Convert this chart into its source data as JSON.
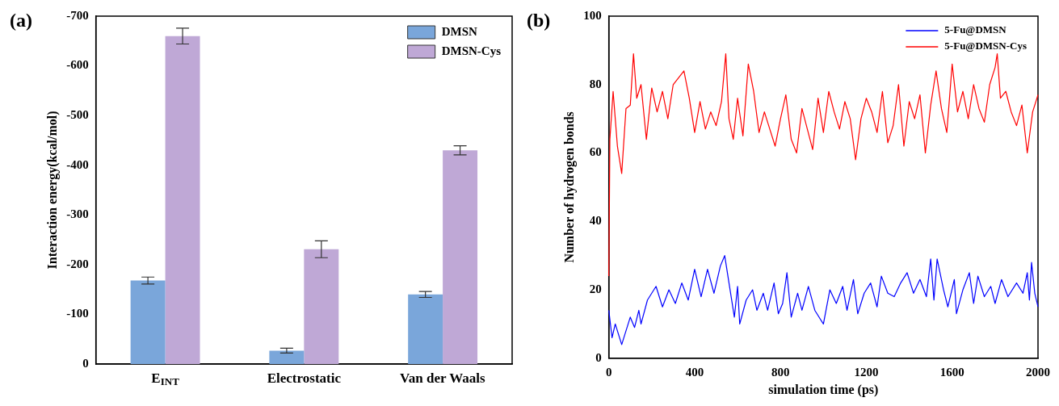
{
  "chart_data": [
    {
      "type": "bar",
      "annotations": [
        "(a)"
      ],
      "ylabel": "Interaction energy(kcal/mol)",
      "categories": [
        "E$_{INT}$",
        "Electrostatic",
        "Van der Waals"
      ],
      "ylim": [
        0,
        -700
      ],
      "yticks": [
        0,
        -100,
        -200,
        -300,
        -400,
        -500,
        -600,
        -700
      ],
      "legend": "top right",
      "series": [
        {
          "name": "DMSN",
          "color": "#7aa6da",
          "values": [
            -168,
            -27,
            -140
          ],
          "errors": [
            7,
            5,
            6
          ]
        },
        {
          "name": "DMSN-Cys",
          "color": "#bfa8d6",
          "values": [
            -660,
            -231,
            -430
          ],
          "errors": [
            16,
            17,
            9
          ]
        }
      ]
    },
    {
      "type": "line",
      "annotations": [
        "(b)"
      ],
      "xlabel": "simulation time (ps)",
      "ylabel": "Number of hydrogen bonds",
      "xlim": [
        0,
        2000
      ],
      "xticks": [
        0,
        400,
        800,
        1200,
        1600,
        2000
      ],
      "ylim": [
        0,
        100
      ],
      "yticks": [
        0,
        20,
        40,
        60,
        80,
        100
      ],
      "legend": "top right",
      "series": [
        {
          "name": "5-Fu@DMSN",
          "color": "#0000ff",
          "x": [
            0,
            15,
            30,
            60,
            100,
            120,
            140,
            150,
            180,
            220,
            250,
            280,
            310,
            340,
            370,
            400,
            430,
            460,
            490,
            520,
            540,
            560,
            585,
            600,
            610,
            640,
            670,
            690,
            720,
            740,
            770,
            790,
            810,
            830,
            850,
            880,
            900,
            930,
            960,
            1000,
            1030,
            1060,
            1090,
            1110,
            1140,
            1160,
            1190,
            1220,
            1250,
            1270,
            1300,
            1330,
            1360,
            1390,
            1420,
            1450,
            1480,
            1500,
            1515,
            1530,
            1560,
            1580,
            1610,
            1620,
            1650,
            1680,
            1700,
            1720,
            1750,
            1780,
            1800,
            1830,
            1860,
            1900,
            1930,
            1950,
            1960,
            1970,
            1985,
            2000
          ],
          "values": [
            14,
            6,
            10,
            4,
            12,
            9,
            14,
            10,
            17,
            21,
            15,
            20,
            16,
            22,
            17,
            26,
            18,
            26,
            19,
            27,
            30,
            22,
            12,
            21,
            10,
            17,
            20,
            14,
            19,
            14,
            22,
            13,
            16,
            25,
            12,
            19,
            14,
            21,
            14,
            10,
            20,
            16,
            21,
            14,
            23,
            13,
            19,
            22,
            15,
            24,
            19,
            18,
            22,
            25,
            19,
            23,
            18,
            29,
            17,
            29,
            20,
            15,
            23,
            13,
            20,
            25,
            16,
            24,
            18,
            21,
            16,
            23,
            18,
            22,
            19,
            25,
            17,
            28,
            19,
            15
          ]
        },
        {
          "name": "5-Fu@DMSN-Cys",
          "color": "#ff0000",
          "x": [
            0,
            5,
            20,
            40,
            60,
            80,
            100,
            115,
            130,
            150,
            175,
            200,
            225,
            250,
            275,
            300,
            325,
            350,
            375,
            400,
            425,
            450,
            475,
            500,
            525,
            545,
            560,
            580,
            600,
            625,
            650,
            675,
            700,
            725,
            750,
            775,
            800,
            825,
            850,
            875,
            900,
            925,
            950,
            975,
            1000,
            1025,
            1050,
            1075,
            1100,
            1125,
            1150,
            1175,
            1200,
            1225,
            1250,
            1275,
            1300,
            1325,
            1350,
            1375,
            1400,
            1425,
            1450,
            1475,
            1500,
            1525,
            1550,
            1575,
            1600,
            1625,
            1650,
            1675,
            1700,
            1725,
            1750,
            1775,
            1800,
            1810,
            1825,
            1850,
            1875,
            1900,
            1925,
            1950,
            1975,
            2000
          ],
          "values": [
            24,
            64,
            78,
            62,
            54,
            73,
            74,
            89,
            76,
            80,
            64,
            79,
            72,
            78,
            70,
            80,
            82,
            84,
            76,
            66,
            75,
            67,
            72,
            68,
            75,
            89,
            70,
            64,
            76,
            65,
            86,
            78,
            66,
            72,
            67,
            62,
            70,
            77,
            64,
            60,
            73,
            67,
            61,
            76,
            66,
            78,
            72,
            67,
            75,
            70,
            58,
            70,
            76,
            72,
            66,
            78,
            63,
            68,
            80,
            62,
            75,
            70,
            77,
            60,
            74,
            84,
            73,
            66,
            86,
            72,
            78,
            70,
            80,
            73,
            69,
            80,
            85,
            89,
            76,
            78,
            72,
            68,
            74,
            60,
            72,
            77
          ]
        }
      ]
    }
  ]
}
